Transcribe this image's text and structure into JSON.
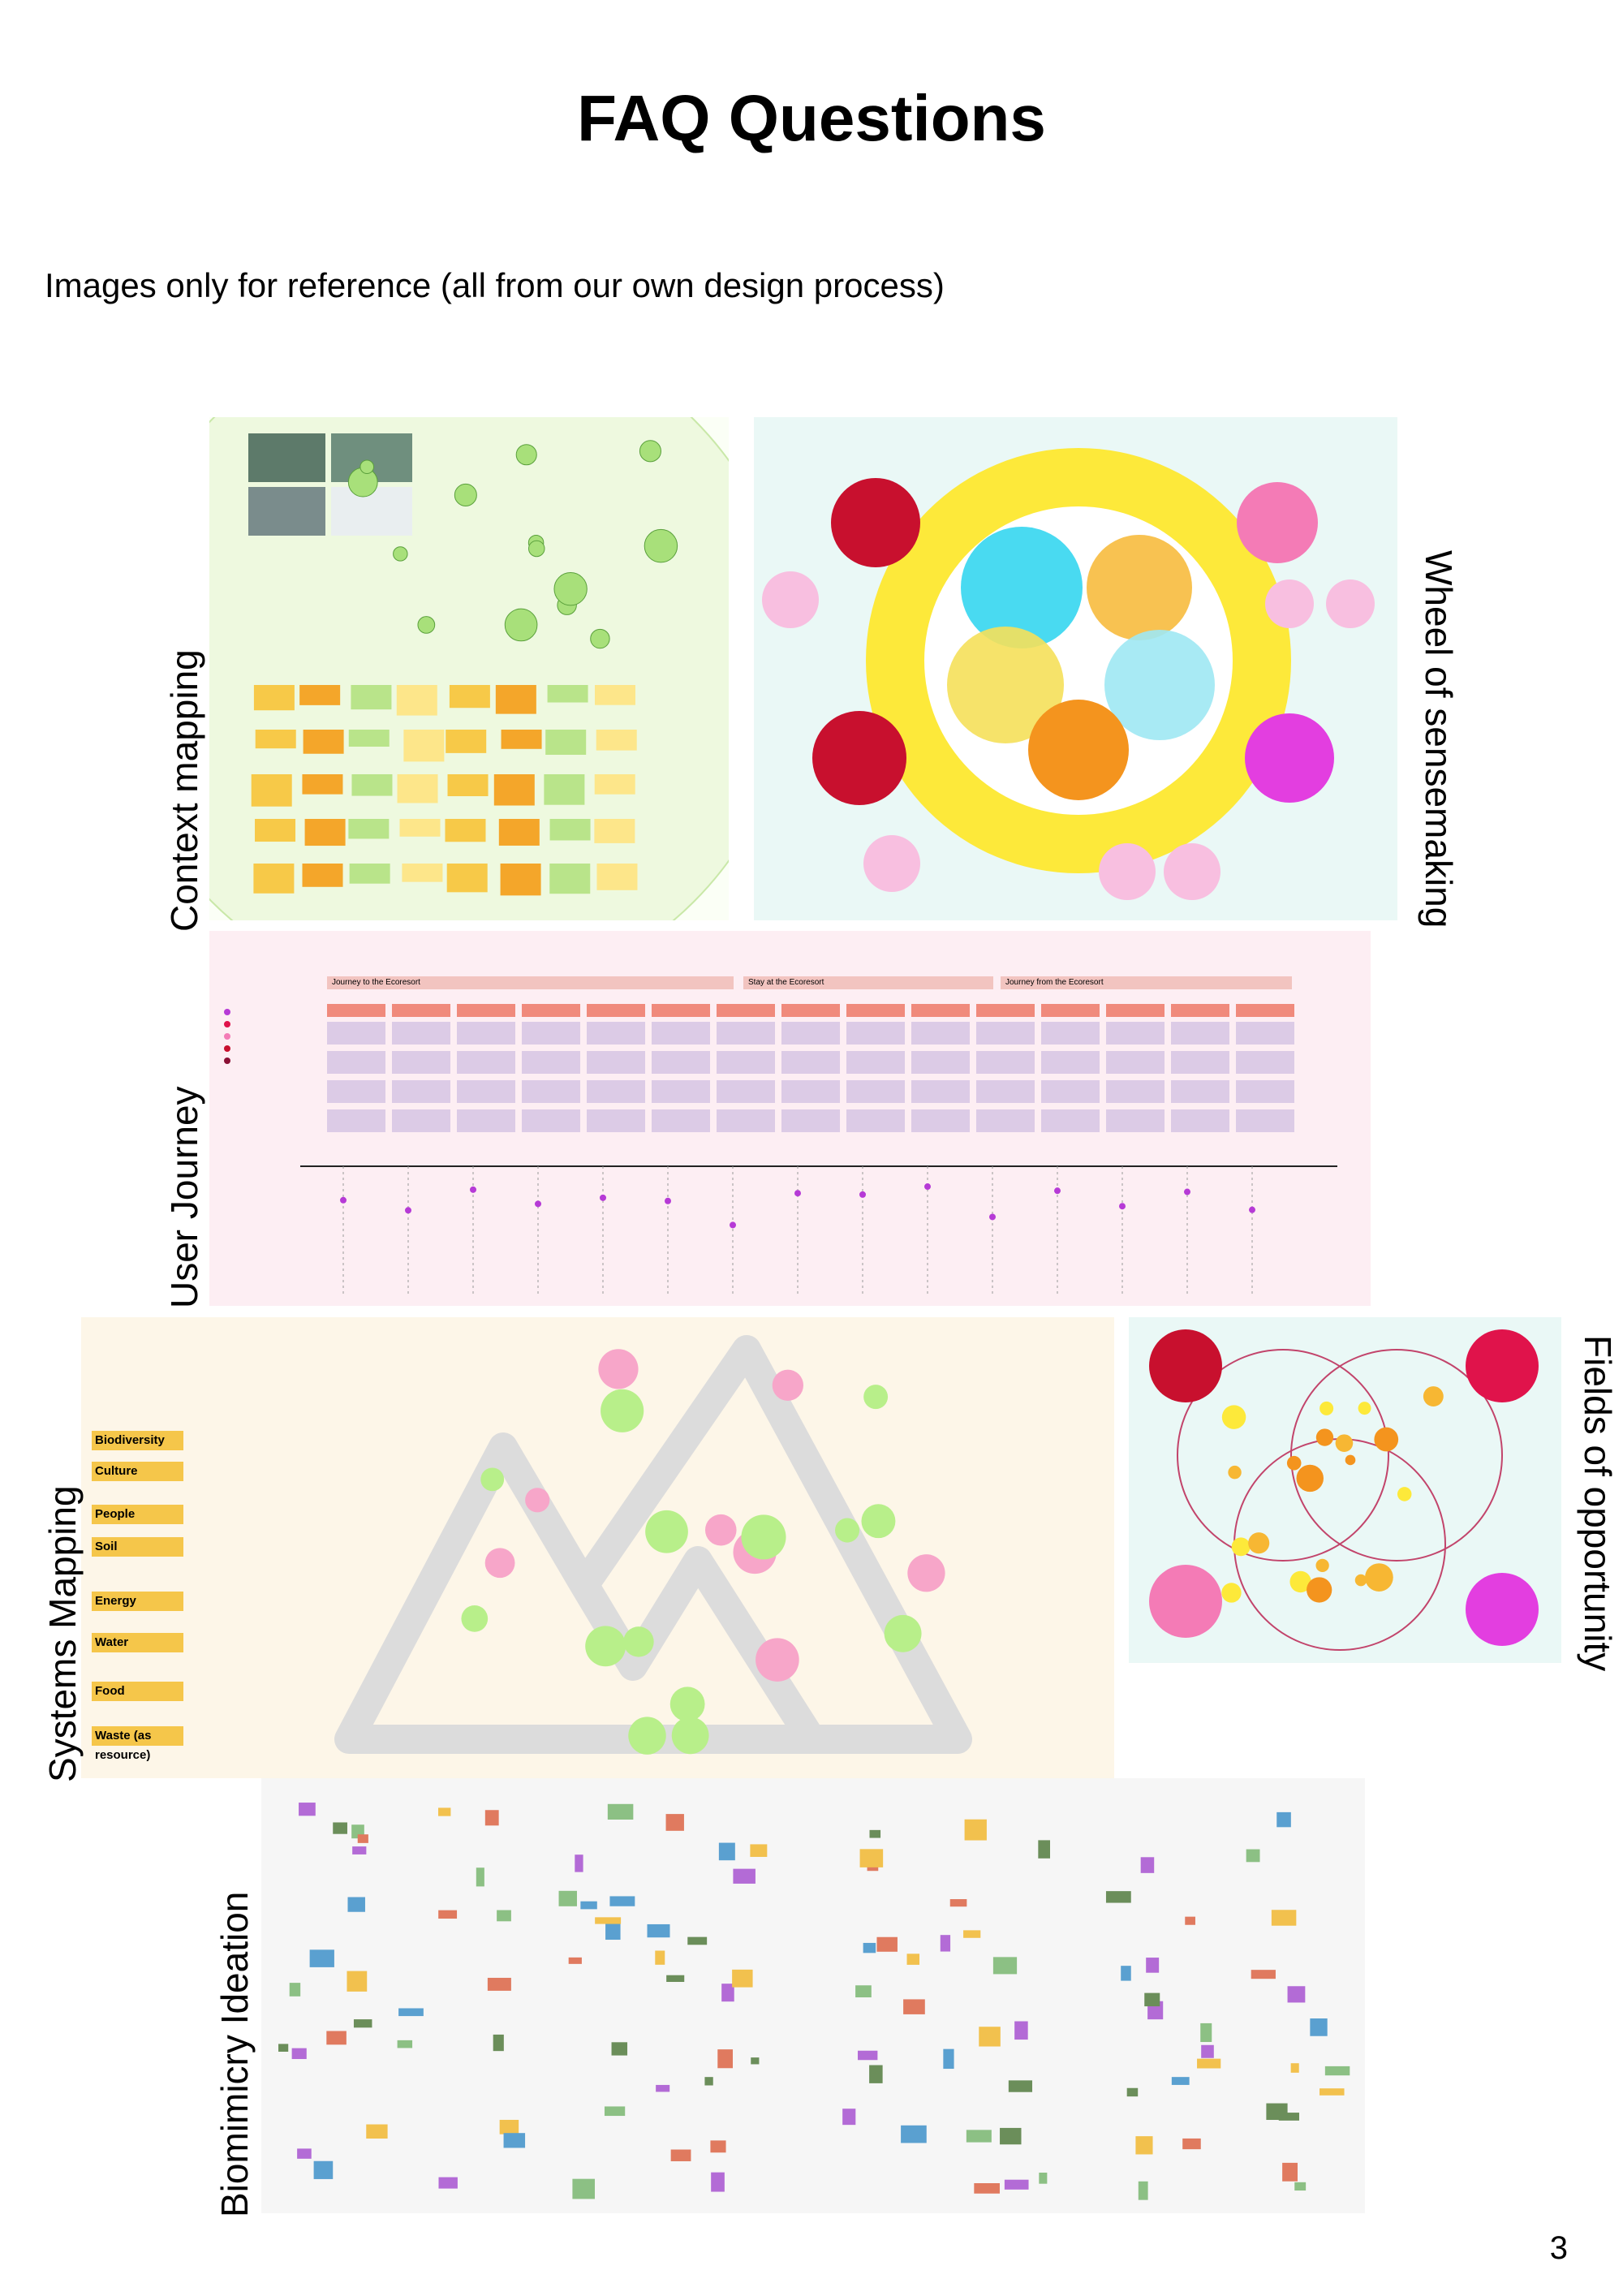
{
  "header": {
    "title": "FAQ Questions",
    "subtitle": "Images only for reference (all from our own design process)"
  },
  "figures": {
    "context_mapping": {
      "label": "Context mapping"
    },
    "wheel": {
      "label": "Wheel of sensemaking"
    },
    "user_journey": {
      "label": "User Journey",
      "stages": [
        "Journey to the Ecoresort",
        "Stay at the Ecoresort",
        "Journey from the Ecoresort"
      ]
    },
    "systems_mapping": {
      "label": "Systems Mapping",
      "legend": [
        "Biodiversity",
        "Culture",
        "People",
        "Soil",
        "Energy",
        "Water",
        "Food",
        "Waste (as resource)"
      ]
    },
    "fields": {
      "label": "Fields of opportunity"
    },
    "biomimicry": {
      "label": "Biomimicry Ideation"
    }
  },
  "footer": {
    "page_number": "3"
  }
}
